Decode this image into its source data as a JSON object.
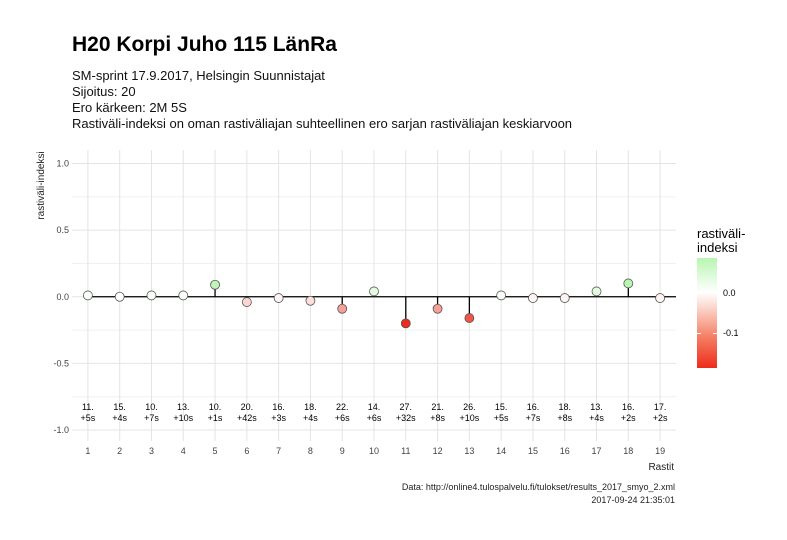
{
  "title": "H20 Korpi Juho 115 LänRa",
  "subtitle_lines": [
    "SM-sprint 17.9.2017, Helsingin Suunnistajat",
    "Sijoitus: 20",
    "Ero kärkeen: 2M 5S",
    "Rastiväli-indeksi on oman rastiväliajan suhteellinen ero sarjan rastiväliajan keskiarvoon"
  ],
  "caption_lines": [
    "Data: http://online4.tulospalvelu.fi/tulokset/results_2017_smyo_2.xml",
    "2017-09-24 21:35:01"
  ],
  "colors": {
    "high": "#b8f5b0",
    "mid": "#ffffff",
    "low": "#ee2b1b",
    "grid": "#e4e4e4",
    "stem": "#000000",
    "point_stroke": "#555555"
  },
  "chart_data": {
    "type": "scatter",
    "xlabel": "Rastit",
    "ylabel": "rastiväli-indeksi",
    "xlim": [
      0.5,
      19.5
    ],
    "ylim": [
      -1.0,
      1.0
    ],
    "yticks": [
      "-1.0",
      "-0.5",
      "0.0",
      "0.5",
      "1.0"
    ],
    "xticks": [
      "1",
      "2",
      "3",
      "4",
      "5",
      "6",
      "7",
      "8",
      "9",
      "10",
      "11",
      "12",
      "13",
      "14",
      "15",
      "16",
      "17",
      "18",
      "19"
    ],
    "x": [
      1,
      2,
      3,
      4,
      5,
      6,
      7,
      8,
      9,
      10,
      11,
      12,
      13,
      14,
      15,
      16,
      17,
      18,
      19
    ],
    "y": [
      0.01,
      0.0,
      0.01,
      0.01,
      0.09,
      -0.04,
      -0.01,
      -0.03,
      -0.09,
      0.04,
      -0.2,
      -0.09,
      -0.16,
      0.01,
      -0.01,
      -0.01,
      0.04,
      0.1,
      -0.01
    ],
    "point_labels": [
      [
        "11.",
        "+5s"
      ],
      [
        "15.",
        "+4s"
      ],
      [
        "10.",
        "+7s"
      ],
      [
        "13.",
        "+10s"
      ],
      [
        "10.",
        "+1s"
      ],
      [
        "20.",
        "+42s"
      ],
      [
        "16.",
        "+3s"
      ],
      [
        "18.",
        "+4s"
      ],
      [
        "22.",
        "+6s"
      ],
      [
        "14.",
        "+6s"
      ],
      [
        "27.",
        "+32s"
      ],
      [
        "21.",
        "+8s"
      ],
      [
        "26.",
        "+10s"
      ],
      [
        "15.",
        "+5s"
      ],
      [
        "16.",
        "+7s"
      ],
      [
        "18.",
        "+8s"
      ],
      [
        "13.",
        "+4s"
      ],
      [
        "16.",
        "+2s"
      ],
      [
        "17.",
        "+2s"
      ]
    ],
    "legend": {
      "title_lines": [
        "rastiväli-",
        "indeksi"
      ],
      "labels": [
        "0.0",
        "-0.1"
      ],
      "range": [
        -0.2,
        0.1
      ],
      "position": "right"
    },
    "grid": true
  }
}
